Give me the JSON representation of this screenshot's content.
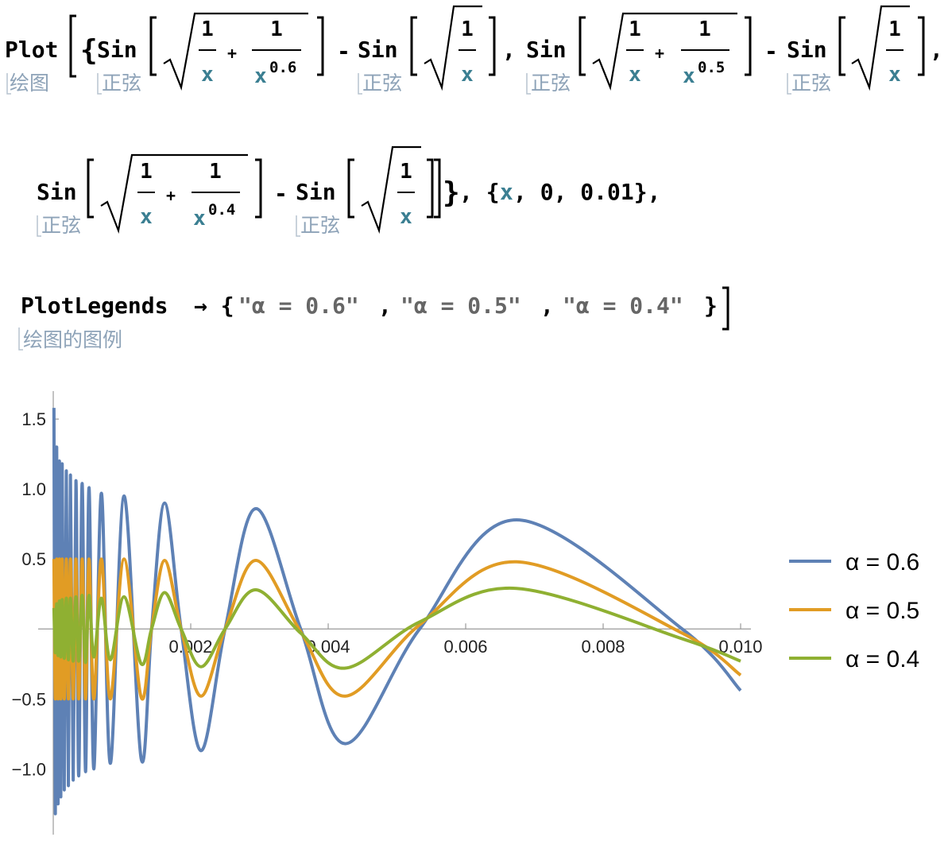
{
  "code": [
    "Plot",
    "绘图",
    "{",
    "Sin",
    "正弦",
    "1",
    "x",
    "+",
    "1",
    "x",
    "0.6",
    "-",
    "Sin",
    "正弦",
    "1",
    "x",
    ",",
    "Sin",
    "正弦",
    "1",
    "x",
    "+",
    "1",
    "x",
    "0.5",
    "-",
    "Sin",
    "正弦",
    "1",
    "x",
    ",",
    "Sin",
    "正弦",
    "1",
    "x",
    "+",
    "1",
    "x",
    "0.4",
    "-",
    "Sin",
    "正弦",
    "1",
    "x",
    "}",
    ", {",
    "x",
    ", 0, 0.01},",
    "PlotLegends",
    "→ {",
    "\"α = 0.6\"",
    ",",
    "\"α = 0.5\"",
    ",",
    "\"α = 0.4\"",
    "}",
    "绘图的图例"
  ],
  "chart_data": {
    "type": "line",
    "x": [
      1e-05,
      3e-05,
      5e-05,
      7e-05,
      9e-05,
      0.00011,
      0.00013,
      0.00016,
      0.00019,
      0.00022,
      0.00025,
      0.00029,
      0.00033,
      0.00037,
      0.00042,
      0.00047,
      0.00052,
      0.00059,
      0.0007,
      0.00083,
      0.00103,
      0.00128,
      0.00143,
      0.00162,
      0.00186,
      0.00215,
      0.0025,
      0.00295,
      0.0036,
      0.00425,
      0.00533,
      0.00674,
      0.00915,
      0.01
    ],
    "series": [
      {
        "name": "α = 0.6",
        "color": "#5e81b5",
        "values": [
          1.58,
          -1.32,
          1.3,
          -1.25,
          1.2,
          -1.2,
          1.18,
          -1.15,
          1.13,
          -1.12,
          1.1,
          -1.08,
          1.06,
          -1.05,
          1.04,
          -1.02,
          1.01,
          -1.0,
          0.97,
          -0.96,
          0.95,
          -0.93,
          0,
          0.9,
          0,
          -0.87,
          0,
          0.86,
          0,
          -0.82,
          0,
          0.78,
          0,
          -0.44
        ]
      },
      {
        "name": "α = 0.5",
        "color": "#e19c24",
        "values": [
          0.5,
          -0.5,
          0.5,
          -0.5,
          0.5,
          -0.5,
          0.5,
          -0.5,
          0.5,
          -0.5,
          0.5,
          -0.5,
          0.5,
          -0.5,
          0.5,
          -0.5,
          0.5,
          -0.5,
          0.5,
          -0.5,
          0.5,
          -0.49,
          0,
          0.49,
          0,
          -0.48,
          0,
          0.49,
          -0.02,
          -0.48,
          0.03,
          0.48,
          -0.03,
          -0.33
        ]
      },
      {
        "name": "α = 0.4",
        "color": "#8fb032",
        "values": [
          0.15,
          -0.17,
          0.18,
          -0.19,
          0.2,
          -0.2,
          0.21,
          -0.21,
          0.22,
          -0.22,
          0.22,
          -0.23,
          0.23,
          -0.23,
          0.24,
          -0.24,
          0.24,
          -0.2,
          0.22,
          -0.22,
          0.23,
          -0.25,
          0,
          0.26,
          0,
          -0.27,
          0,
          0.28,
          -0.03,
          -0.28,
          0.05,
          0.29,
          -0.07,
          -0.23
        ]
      }
    ],
    "xlim": [
      -0.00022,
      0.01015
    ],
    "ylim": [
      -1.47,
      1.7
    ],
    "xticks": [
      0.002,
      0.004,
      0.006,
      0.008,
      {
        "value": 0.01,
        "label": "0.010"
      }
    ],
    "yticks": [
      {
        "value": -1.0,
        "label": "−1.0"
      },
      {
        "value": -0.5,
        "label": "−0.5"
      },
      0.5,
      {
        "value": 1.0,
        "label": "1.0"
      },
      1.5
    ],
    "legend": "right"
  }
}
